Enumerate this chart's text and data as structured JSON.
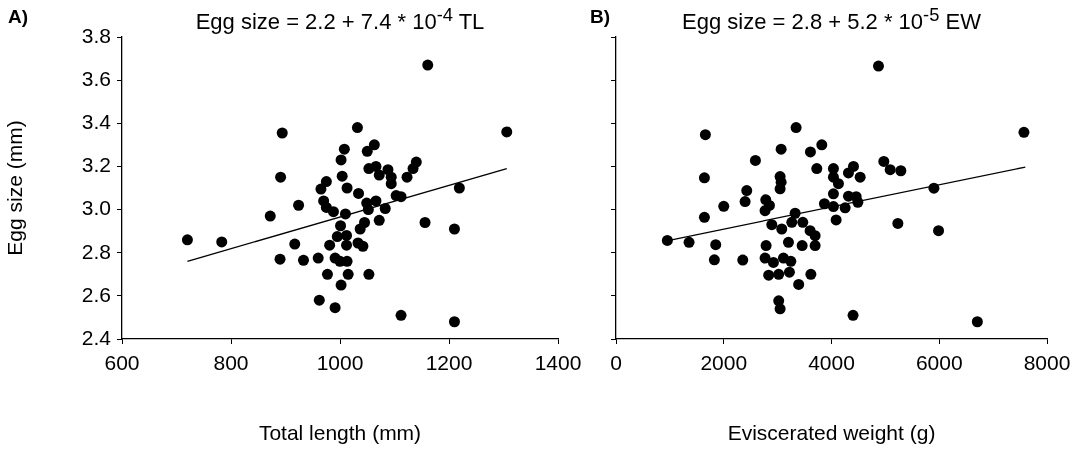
{
  "chart_data": [
    {
      "type": "scatter",
      "title": "Egg size = 2.2 + 7.4 * 10$^{-4}$ TL",
      "annotations": [
        "A)"
      ],
      "xlabel": "Total length (mm)",
      "ylabel": "Egg size (mm)",
      "xlim": [
        600,
        1400
      ],
      "xticks": [
        600,
        800,
        1000,
        1200,
        1400
      ],
      "ylim": [
        2.4,
        3.8
      ],
      "yticks": [
        2.4,
        2.6,
        2.8,
        {
          "value": 3,
          "label": "3.0"
        },
        3.2,
        3.4,
        3.6,
        3.8
      ],
      "grid": false,
      "legend": false,
      "marker": "circle",
      "series": [
        {
          "color": "#000000",
          "x": [
            1161,
            1032,
            894,
            1306,
            1063,
            1050,
            1008,
            1002,
            1140,
            1134,
            1123,
            1053,
            1066,
            1088,
            1072,
            1094,
            1094,
            891,
            1004,
            975,
            965,
            1013,
            1034,
            1219,
            1103,
            1112,
            970,
            975,
            988,
            924,
            872,
            1049,
            1066,
            1052,
            1083,
            1010,
            1072,
            1045,
            1037,
            1001,
            1156,
            1210,
            720,
            783,
            917,
            995,
            1012,
            981,
            1012,
            1033,
            1042,
            890,
            933,
            960,
            991,
            1000,
            1013,
            977,
            1015,
            1053,
            1002,
            962,
            991,
            1112,
            1210
          ],
          "values": [
            3.67,
            3.38,
            3.355,
            3.36,
            3.3,
            3.27,
            3.28,
            3.23,
            3.22,
            3.19,
            3.15,
            3.19,
            3.2,
            3.185,
            3.16,
            3.15,
            3.12,
            3.15,
            3.155,
            3.13,
            3.095,
            3.1,
            3.075,
            3.1,
            3.065,
            3.06,
            3.04,
            3.01,
            2.99,
            3.02,
            2.97,
            3.03,
            3.04,
            3.0,
            3.005,
            2.98,
            2.95,
            2.94,
            2.91,
            2.925,
            2.94,
            2.91,
            2.86,
            2.85,
            2.84,
            2.875,
            2.88,
            2.835,
            2.835,
            2.845,
            2.83,
            2.77,
            2.765,
            2.775,
            2.775,
            2.76,
            2.76,
            2.7,
            2.7,
            2.7,
            2.65,
            2.58,
            2.545,
            2.51,
            2.48
          ]
        },
        {
          "type": "line",
          "color": "#000000",
          "marker": "none",
          "x": [
            720,
            1306
          ],
          "values": [
            2.76,
            3.19
          ]
        }
      ]
    },
    {
      "type": "scatter",
      "title": "Egg size = 2.8 + 5.2 * 10$^{-5}$ EW",
      "annotations": [
        "B)"
      ],
      "xlabel": "Eviscerated weight (g)",
      "xlim": [
        0,
        8000
      ],
      "xticks": [
        0,
        2000,
        4000,
        6000,
        8000
      ],
      "ylim": [
        2.4,
        3.8
      ],
      "yticks": [
        2.4,
        2.6,
        2.8,
        3,
        3.2,
        3.4,
        3.6,
        3.8
      ],
      "tick_labels": "x",
      "grid": false,
      "legend": false,
      "marker": "circle",
      "series": [
        {
          "color": "#000000",
          "x": [
            4872,
            3343,
            1659,
            7572,
            3065,
            3609,
            3820,
            2588,
            4971,
            5089,
            5287,
            3727,
            4036,
            4408,
            4315,
            4532,
            4036,
            4129,
            1641,
            3046,
            3065,
            3046,
            2427,
            2396,
            2780,
            2848,
            2767,
            2000,
            1641,
            953,
            1356,
            1851,
            1826,
            2353,
            2786,
            2767,
            2922,
            3108,
            3245,
            2892,
            3077,
            3201,
            3263,
            3325,
            3467,
            3603,
            3696,
            3455,
            3696,
            4086,
            3869,
            4036,
            4036,
            4253,
            4315,
            4458,
            4489,
            5901,
            5232,
            5987,
            2834,
            3020,
            3219,
            3617,
            3391,
            3020,
            3046,
            4400,
            6707
          ],
          "values": [
            3.665,
            3.38,
            3.347,
            3.358,
            3.28,
            3.267,
            3.3,
            3.228,
            3.223,
            3.185,
            3.18,
            3.19,
            3.19,
            3.2,
            3.17,
            3.15,
            3.15,
            3.12,
            3.147,
            3.153,
            3.127,
            3.096,
            3.088,
            3.037,
            3.045,
            3.019,
            2.995,
            3.015,
            2.964,
            2.857,
            2.848,
            2.837,
            2.767,
            2.766,
            2.833,
            2.775,
            2.755,
            2.775,
            2.76,
            2.93,
            2.91,
            2.848,
            2.941,
            2.983,
            2.941,
            2.902,
            2.879,
            2.833,
            2.833,
            2.952,
            3.027,
            3.073,
            3.014,
            3.008,
            3.062,
            3.06,
            3.034,
            3.099,
            2.936,
            2.902,
            2.696,
            2.7,
            2.71,
            2.7,
            2.653,
            2.577,
            2.54,
            2.51,
            2.48
          ]
        },
        {
          "type": "line",
          "color": "#000000",
          "marker": "none",
          "x": [
            1034,
            7597
          ],
          "values": [
            2.86,
            3.197
          ]
        }
      ]
    }
  ]
}
